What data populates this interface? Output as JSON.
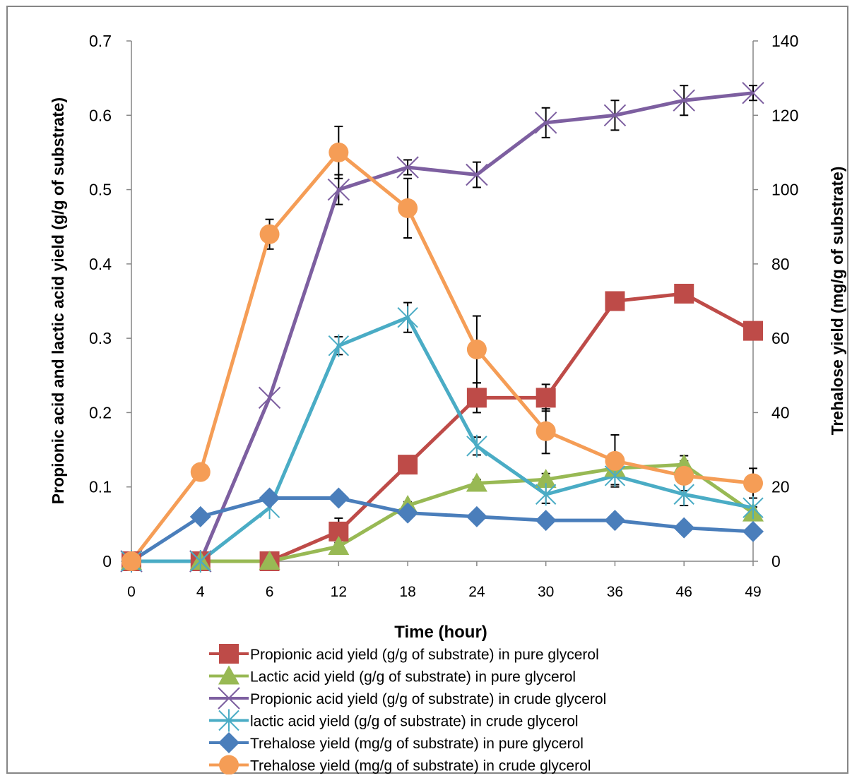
{
  "chart_data": {
    "type": "line",
    "title": "",
    "xlabel": "Time (hour)",
    "ylabel_left": "Propionic acid and lactic acid yield (g/g of substrate)",
    "ylabel_right": "Trehalose yield (mg/g of substrate)",
    "categories": [
      "0",
      "4",
      "6",
      "12",
      "18",
      "24",
      "30",
      "36",
      "46",
      "49"
    ],
    "ylim_left": [
      0,
      0.7
    ],
    "ylim_right": [
      0,
      140
    ],
    "yticks_left": [
      "0",
      "0.1",
      "0.2",
      "0.3",
      "0.4",
      "0.5",
      "0.6",
      "0.7"
    ],
    "yticks_right": [
      "0",
      "20",
      "40",
      "60",
      "80",
      "100",
      "120",
      "140"
    ],
    "grid": false,
    "legend_position": "bottom",
    "series": [
      {
        "name": "Propionic acid yield (g/g of substrate) in pure glycerol",
        "axis": "left",
        "color": "#be4b48",
        "marker": "square",
        "values": [
          0,
          0,
          0,
          0.04,
          0.13,
          0.22,
          0.22,
          0.35,
          0.36,
          0.31
        ],
        "errors": [
          0,
          0,
          0,
          0.018,
          0.01,
          0.02,
          0.018,
          0.01,
          0.01,
          0
        ]
      },
      {
        "name": "Lactic acid yield (g/g of substrate) in pure glycerol",
        "axis": "left",
        "color": "#98b954",
        "marker": "triangle",
        "values": [
          0,
          0,
          0,
          0.02,
          0.075,
          0.105,
          0.11,
          0.125,
          0.13,
          0.065
        ],
        "errors": [
          0,
          0,
          0,
          0.005,
          0.005,
          0.005,
          0.008,
          0.01,
          0.012,
          0.008
        ]
      },
      {
        "name": "Propionic acid yield (g/g of substrate) in crude glycerol",
        "axis": "left",
        "color": "#7d5fa0",
        "marker": "x",
        "values": [
          0,
          0,
          0.22,
          0.5,
          0.53,
          0.52,
          0.59,
          0.6,
          0.62,
          0.63
        ],
        "errors": [
          0,
          0,
          0,
          0.02,
          0.01,
          0.017,
          0.02,
          0.02,
          0.02,
          0.01
        ]
      },
      {
        "name": "lactic acid yield (g/g of substrate) in crude glycerol",
        "axis": "left",
        "color": "#4aacc5",
        "marker": "star",
        "values": [
          0,
          0,
          0.072,
          0.29,
          0.328,
          0.155,
          0.09,
          0.115,
          0.09,
          0.072
        ],
        "errors": [
          0,
          0,
          0,
          0.012,
          0.02,
          0.012,
          0.012,
          0.012,
          0.015,
          0
        ]
      },
      {
        "name": "Trehalose yield (mg/g of substrate) in pure glycerol",
        "axis": "right",
        "color": "#4a7ebb",
        "marker": "diamond",
        "values": [
          0,
          12,
          17,
          17,
          13,
          12,
          11,
          11,
          9,
          8
        ],
        "errors": [
          0,
          0,
          0,
          0,
          0,
          0,
          0,
          0,
          0,
          0
        ]
      },
      {
        "name": "Trehalose yield (mg/g of substrate) in crude glycerol",
        "axis": "right",
        "color": "#f59d56",
        "marker": "circle",
        "values": [
          0,
          24,
          88,
          110,
          95,
          57,
          35,
          27,
          23,
          21
        ],
        "errors": [
          0,
          0,
          4,
          7,
          8,
          9,
          6,
          7,
          4,
          4
        ]
      }
    ]
  }
}
